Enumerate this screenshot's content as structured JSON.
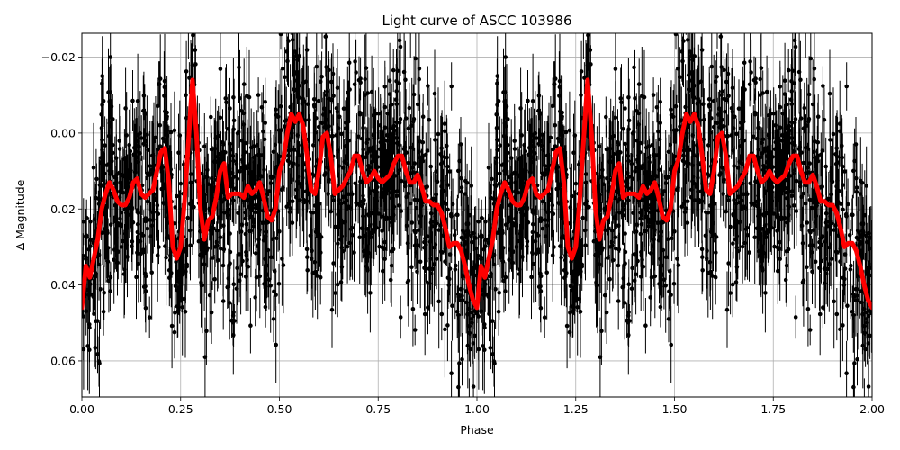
{
  "chart_data": {
    "type": "scatter",
    "title": "Light curve of ASCC 103986",
    "xlabel": "Phase",
    "ylabel": "Δ Magnitude",
    "xlim": [
      0.0,
      2.0
    ],
    "ylim": [
      0.0695,
      -0.0263
    ],
    "y_inverted": true,
    "grid": true,
    "legend": null,
    "xticks": [
      "0.00",
      "0.25",
      "0.50",
      "0.75",
      "1.00",
      "1.25",
      "1.50",
      "1.75",
      "2.00"
    ],
    "xtick_values": [
      0.0,
      0.25,
      0.5,
      0.75,
      1.0,
      1.25,
      1.5,
      1.75,
      2.0
    ],
    "yticks": [
      "−0.02",
      "0.00",
      "0.02",
      "0.04",
      "0.06"
    ],
    "ytick_values": [
      -0.02,
      0.0,
      0.02,
      0.04,
      0.06
    ],
    "series": [
      {
        "name": "observations",
        "style": "black points with vertical error bars",
        "color": "#000000",
        "description": "dense phase-folded photometry, scatter roughly ±0.03 mag around the model; data repeated for phase 1–2"
      },
      {
        "name": "smoothed model",
        "style": "thick red line",
        "color": "#ff0000",
        "x": [
          0.0,
          0.01,
          0.02,
          0.03,
          0.04,
          0.05,
          0.06,
          0.07,
          0.08,
          0.09,
          0.1,
          0.11,
          0.12,
          0.13,
          0.14,
          0.15,
          0.16,
          0.17,
          0.18,
          0.19,
          0.2,
          0.21,
          0.22,
          0.23,
          0.24,
          0.25,
          0.26,
          0.27,
          0.28,
          0.29,
          0.3,
          0.31,
          0.32,
          0.33,
          0.34,
          0.35,
          0.36,
          0.37,
          0.38,
          0.39,
          0.4,
          0.41,
          0.42,
          0.43,
          0.44,
          0.45,
          0.46,
          0.47,
          0.48,
          0.49,
          0.5,
          0.51,
          0.52,
          0.53,
          0.54,
          0.55,
          0.56,
          0.57,
          0.58,
          0.59,
          0.6,
          0.61,
          0.62,
          0.63,
          0.64,
          0.65,
          0.66,
          0.67,
          0.68,
          0.69,
          0.7,
          0.71,
          0.72,
          0.73,
          0.74,
          0.75,
          0.76,
          0.77,
          0.78,
          0.79,
          0.8,
          0.81,
          0.82,
          0.83,
          0.84,
          0.85,
          0.86,
          0.87,
          0.88,
          0.89,
          0.9,
          0.91,
          0.92,
          0.93,
          0.94,
          0.95,
          0.96,
          0.97,
          0.98,
          0.99,
          1.0
        ],
        "values": [
          0.046,
          0.035,
          0.038,
          0.033,
          0.028,
          0.02,
          0.016,
          0.013,
          0.015,
          0.018,
          0.019,
          0.019,
          0.017,
          0.013,
          0.012,
          0.016,
          0.017,
          0.016,
          0.015,
          0.01,
          0.005,
          0.004,
          0.013,
          0.03,
          0.033,
          0.03,
          0.018,
          0.002,
          -0.014,
          0.0,
          0.02,
          0.028,
          0.023,
          0.022,
          0.017,
          0.01,
          0.008,
          0.017,
          0.016,
          0.016,
          0.016,
          0.017,
          0.014,
          0.016,
          0.015,
          0.013,
          0.017,
          0.022,
          0.023,
          0.02,
          0.01,
          0.007,
          0.0,
          -0.005,
          -0.003,
          -0.005,
          -0.002,
          0.006,
          0.015,
          0.016,
          0.01,
          0.001,
          0.0,
          0.006,
          0.016,
          0.015,
          0.014,
          0.012,
          0.01,
          0.006,
          0.006,
          0.01,
          0.013,
          0.012,
          0.01,
          0.012,
          0.013,
          0.012,
          0.011,
          0.008,
          0.006,
          0.006,
          0.01,
          0.013,
          0.013,
          0.011,
          0.014,
          0.018,
          0.018,
          0.019,
          0.019,
          0.021,
          0.025,
          0.03,
          0.029,
          0.029,
          0.031,
          0.035,
          0.04,
          0.044,
          0.046
        ]
      }
    ]
  }
}
